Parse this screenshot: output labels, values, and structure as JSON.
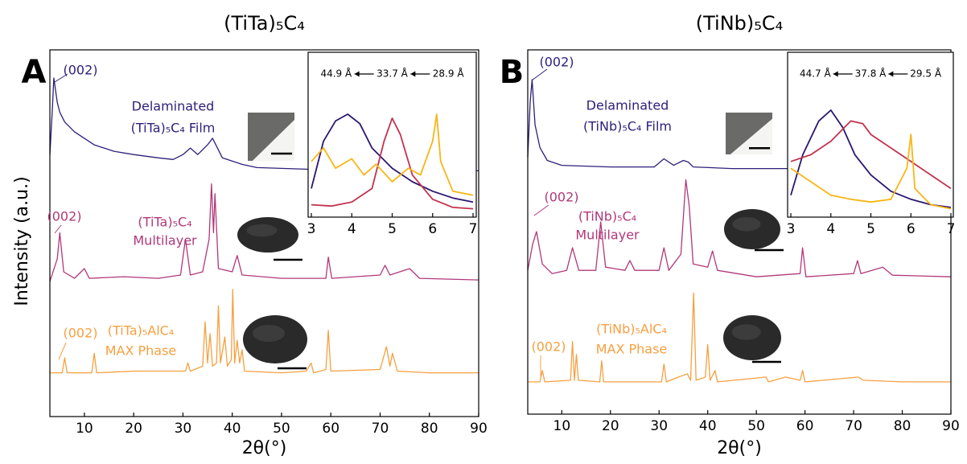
{
  "chart_data": [
    {
      "type": "line",
      "panel": "A",
      "title": "(TiTa)₅C₄",
      "xlabel": "2θ(°)",
      "ylabel": "Intensity (a.u.)",
      "xlim": [
        3,
        90
      ],
      "xticks": [
        10,
        20,
        30,
        40,
        50,
        60,
        70,
        80,
        90
      ],
      "ylim": [
        0,
        100
      ],
      "series": [
        {
          "label": [
            "Delaminated",
            "(TiTa)₅C₄ Film"
          ],
          "peak_label": "(002)",
          "color": "#2e1f7a",
          "x": [
            3,
            3.5,
            3.8,
            4.5,
            5,
            6,
            8,
            12,
            16,
            20,
            25,
            28,
            30,
            31.5,
            33,
            35,
            36,
            37,
            38,
            42,
            45,
            55,
            60,
            70,
            90
          ],
          "values": [
            76,
            90,
            99.5,
            92,
            89,
            86,
            83,
            79,
            77,
            76,
            75,
            74.5,
            76,
            78,
            76,
            79,
            81,
            78,
            75,
            73,
            72,
            71.5,
            71,
            71,
            71
          ]
        },
        {
          "label": [
            "(TiTa)₅C₄",
            "Multilayer"
          ],
          "peak_label": "(002)",
          "color": "#b0387a",
          "x": [
            3,
            4.5,
            5,
            5.8,
            8,
            10,
            11,
            18,
            25,
            29.5,
            30.5,
            31.5,
            34,
            35.3,
            35.8,
            36.2,
            36.5,
            37.2,
            40,
            41,
            42,
            50,
            59,
            59.5,
            60.2,
            70,
            71,
            72,
            76,
            78,
            90
          ],
          "values": [
            37,
            44,
            52,
            40,
            38,
            41,
            38,
            38.5,
            38,
            39,
            50,
            39,
            40,
            50,
            67,
            52,
            64,
            41,
            40,
            45,
            39,
            38,
            38,
            44.5,
            38,
            39,
            42,
            39,
            41,
            38,
            37.5
          ]
        },
        {
          "label": [
            "(TiTa)₅AlC₄",
            "MAX Phase"
          ],
          "peak_label": "(002)",
          "color": "#f5a040",
          "x": [
            3,
            5.5,
            6,
            6.5,
            11.5,
            12,
            12.5,
            20,
            30.5,
            31,
            31.5,
            34,
            34.5,
            35,
            35.5,
            36,
            36.8,
            37.2,
            37.6,
            38.5,
            39,
            39.8,
            40.1,
            40.5,
            41,
            41.5,
            42,
            42.5,
            50,
            55,
            56,
            56.5,
            59,
            59.5,
            60,
            70,
            71.3,
            72,
            72.5,
            73.5,
            80,
            90
          ],
          "values": [
            9,
            9,
            13.6,
            9,
            9,
            15,
            9,
            9.5,
            9.5,
            12,
            9.5,
            11,
            24.7,
            12,
            21,
            11,
            12,
            29.6,
            12,
            20,
            11,
            13,
            34.6,
            12,
            19,
            12,
            16,
            9.5,
            9,
            9.5,
            12,
            9,
            10,
            22,
            9.5,
            10,
            17,
            11,
            15,
            9.5,
            9,
            9
          ]
        }
      ]
    },
    {
      "type": "line",
      "xlim": [
        3,
        7
      ],
      "xticks": [
        3,
        4,
        5,
        6,
        7
      ],
      "ylim": [
        0,
        100
      ],
      "d_spacings": [
        "44.9 Å",
        "33.7 Å",
        "28.9 Å"
      ],
      "series": [
        {
          "color": "#2b1670",
          "x": [
            3,
            3.3,
            3.6,
            3.9,
            4.2,
            4.5,
            5,
            5.5,
            6,
            6.5,
            7
          ],
          "values": [
            20,
            55,
            70,
            75,
            68,
            50,
            35,
            25,
            18,
            13,
            10
          ]
        },
        {
          "color": "#c2334f",
          "x": [
            3,
            3.5,
            4,
            4.5,
            4.8,
            5,
            5.2,
            5.5,
            6,
            6.5,
            7
          ],
          "values": [
            8,
            7,
            10,
            20,
            55,
            72,
            60,
            30,
            12,
            6,
            5
          ]
        },
        {
          "color": "#f7b616",
          "x": [
            3,
            3.3,
            3.6,
            4,
            4.3,
            4.6,
            5,
            5.4,
            5.7,
            6,
            6.1,
            6.2,
            6.5,
            7
          ],
          "values": [
            40,
            50,
            35,
            42,
            30,
            38,
            25,
            35,
            30,
            55,
            75,
            40,
            18,
            15
          ]
        }
      ]
    },
    {
      "type": "line",
      "panel": "B",
      "title": "(TiNb)₅C₄",
      "xlabel": "2θ(°)",
      "xlim": [
        3,
        90
      ],
      "xticks": [
        10,
        20,
        30,
        40,
        50,
        60,
        70,
        80,
        90
      ],
      "ylim": [
        0,
        100
      ],
      "series": [
        {
          "label": [
            "Delaminated",
            "(TiNb)₅C₄ Film"
          ],
          "peak_label": "(002)",
          "color": "#2e1f7a",
          "x": [
            3,
            3.5,
            3.9,
            4.5,
            5.5,
            7,
            10,
            20,
            29,
            31,
            33,
            35,
            36,
            37,
            45,
            60,
            90
          ],
          "values": [
            75,
            92,
            99,
            85,
            78,
            74,
            72.5,
            72,
            72,
            74.5,
            72.5,
            74,
            73.5,
            72,
            71.5,
            71.5,
            71.5
          ]
        },
        {
          "label": [
            "(TiNb)₅C₄",
            "Multilayer"
          ],
          "peak_label": "(002)",
          "color": "#b0387a",
          "x": [
            3,
            4,
            4.8,
            6,
            8,
            11,
            12.2,
            13.5,
            17,
            18,
            19,
            23,
            24,
            25,
            30,
            31,
            32,
            34.5,
            35.5,
            36.2,
            37,
            40,
            41,
            42,
            50,
            59,
            59.5,
            60.2,
            70,
            70.8,
            71.5,
            76,
            78,
            90
          ],
          "values": [
            40,
            48,
            52,
            42,
            39,
            40,
            47,
            40,
            40,
            55,
            41,
            40,
            43,
            40,
            40,
            47,
            40,
            45,
            68,
            60,
            42,
            41,
            46,
            40,
            38,
            39,
            47,
            38,
            39,
            43,
            39,
            41,
            38.5,
            38
          ]
        },
        {
          "label": [
            "(TiNb)₅AlC₄",
            "MAX Phase"
          ],
          "peak_label": "(002)",
          "color": "#f5a040",
          "x": [
            3,
            5.5,
            6,
            6.5,
            11.8,
            12.2,
            12.6,
            13,
            13.4,
            17.8,
            18.2,
            18.6,
            30.5,
            31,
            31.5,
            34,
            35.8,
            36.5,
            37.1,
            37.6,
            39.5,
            40,
            40.5,
            41.5,
            42,
            52,
            52.5,
            56,
            59,
            59.5,
            60,
            71,
            72,
            80,
            90
          ],
          "values": [
            5.5,
            5.5,
            9,
            5.5,
            6,
            18,
            6,
            14,
            6,
            5.5,
            12,
            5.5,
            5.5,
            11,
            5.5,
            7,
            8,
            6,
            33,
            6,
            7,
            17,
            6,
            9,
            5.5,
            7,
            5.5,
            7,
            6,
            9,
            5.5,
            7,
            6,
            5.5,
            5.5
          ]
        }
      ]
    },
    {
      "type": "line",
      "xlim": [
        3,
        7
      ],
      "xticks": [
        3,
        4,
        5,
        6,
        7
      ],
      "ylim": [
        0,
        100
      ],
      "d_spacings": [
        "44.7 Å",
        "37.8 Å",
        "29.5 Å"
      ],
      "series": [
        {
          "color": "#2b1670",
          "x": [
            3,
            3.3,
            3.7,
            4,
            4.3,
            4.6,
            5,
            5.5,
            6,
            6.5,
            7
          ],
          "values": [
            15,
            45,
            70,
            78,
            65,
            45,
            30,
            18,
            12,
            8,
            6
          ]
        },
        {
          "color": "#c2334f",
          "x": [
            3,
            3.5,
            4,
            4.5,
            4.8,
            5,
            5.5,
            6,
            6.5,
            7
          ],
          "values": [
            40,
            45,
            55,
            70,
            68,
            60,
            50,
            40,
            30,
            20
          ]
        },
        {
          "color": "#f7b616",
          "x": [
            3,
            3.5,
            4,
            4.5,
            5,
            5.5,
            5.9,
            6,
            6.1,
            6.5,
            7
          ],
          "values": [
            35,
            25,
            15,
            12,
            10,
            12,
            35,
            60,
            20,
            8,
            5
          ]
        }
      ]
    }
  ]
}
